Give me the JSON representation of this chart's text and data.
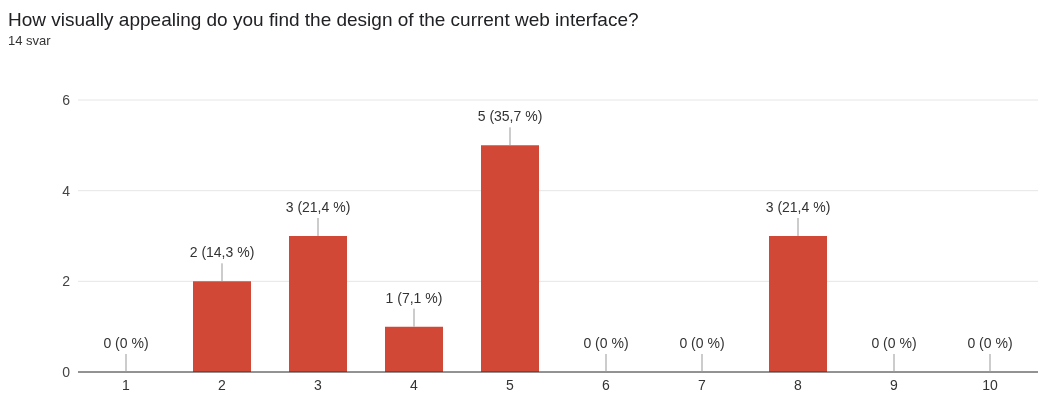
{
  "chart_data": {
    "type": "bar",
    "title": "How visually appealing do you find the design of the current web interface?",
    "subtitle": "14 svar",
    "categories": [
      "1",
      "2",
      "3",
      "4",
      "5",
      "6",
      "7",
      "8",
      "9",
      "10"
    ],
    "values": [
      0,
      2,
      3,
      1,
      5,
      0,
      0,
      3,
      0,
      0
    ],
    "value_labels": [
      "0 (0 %)",
      "2 (14,3 %)",
      "3 (21,4 %)",
      "1 (7,1 %)",
      "5 (35,7 %)",
      "0 (0 %)",
      "0 (0 %)",
      "3 (21,4 %)",
      "0 (0 %)",
      "0 (0 %)"
    ],
    "color": "#d14836",
    "ylim": [
      0,
      6
    ],
    "yticks": [
      0,
      2,
      4,
      6
    ],
    "grid": "y"
  }
}
